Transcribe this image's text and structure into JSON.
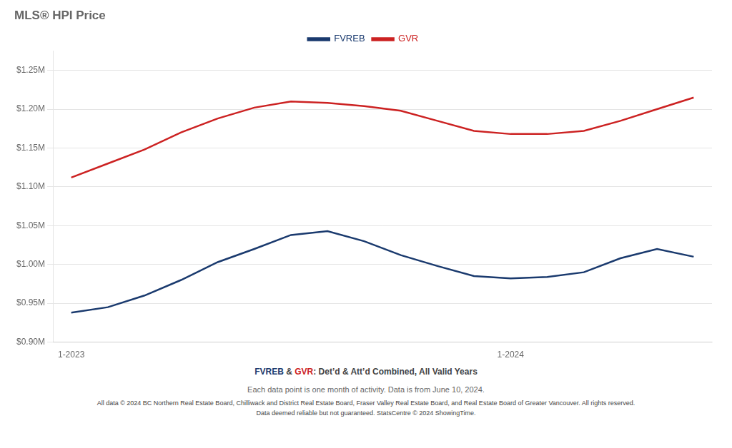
{
  "chart_data": {
    "type": "line",
    "title": "MLS® HPI Price",
    "subtitle": "FVREB & GVR: Det’d & Att’d Combined, All Valid Years",
    "annotations": [
      "Each data point is one month of activity. Data is from June 10, 2024.",
      "All data © 2024 BC Northern Real Estate Board, Chilliwack and District Real Estate Board, Fraser Valley Real Estate Board, and Real Estate Board of Greater Vancouver. All rights reserved.",
      "Data deemed reliable but not guaranteed. StatsCentre © 2024 ShowingTime."
    ],
    "categories": [
      "1-2023",
      null,
      null,
      null,
      null,
      null,
      null,
      null,
      null,
      null,
      null,
      null,
      "1-2024",
      null,
      null,
      null,
      null,
      null
    ],
    "series": [
      {
        "name": "FVREB",
        "color": "#1a3a6e",
        "values": [
          0.938,
          0.945,
          0.96,
          0.98,
          1.003,
          1.02,
          1.038,
          1.043,
          1.03,
          1.012,
          0.998,
          0.985,
          0.982,
          0.984,
          0.99,
          1.008,
          1.02,
          1.01
        ]
      },
      {
        "name": "GVR",
        "color": "#cc2222",
        "values": [
          1.112,
          1.13,
          1.148,
          1.17,
          1.188,
          1.202,
          1.21,
          1.208,
          1.204,
          1.198,
          1.185,
          1.172,
          1.168,
          1.168,
          1.172,
          1.185,
          1.2,
          1.215
        ]
      }
    ],
    "ylim": [
      0.9,
      1.275
    ],
    "yticks": [
      {
        "value": 0.9,
        "label": "$0.90M"
      },
      {
        "value": 0.95,
        "label": "$0.95M"
      },
      {
        "value": 1.0,
        "label": "$1.00M"
      },
      {
        "value": 1.05,
        "label": "$1.05M"
      },
      {
        "value": 1.1,
        "label": "$1.10M"
      },
      {
        "value": 1.15,
        "label": "$1.15M"
      },
      {
        "value": 1.2,
        "label": "$1.20M"
      },
      {
        "value": 1.25,
        "label": "$1.25M"
      }
    ],
    "grid": true,
    "legend": "top"
  }
}
